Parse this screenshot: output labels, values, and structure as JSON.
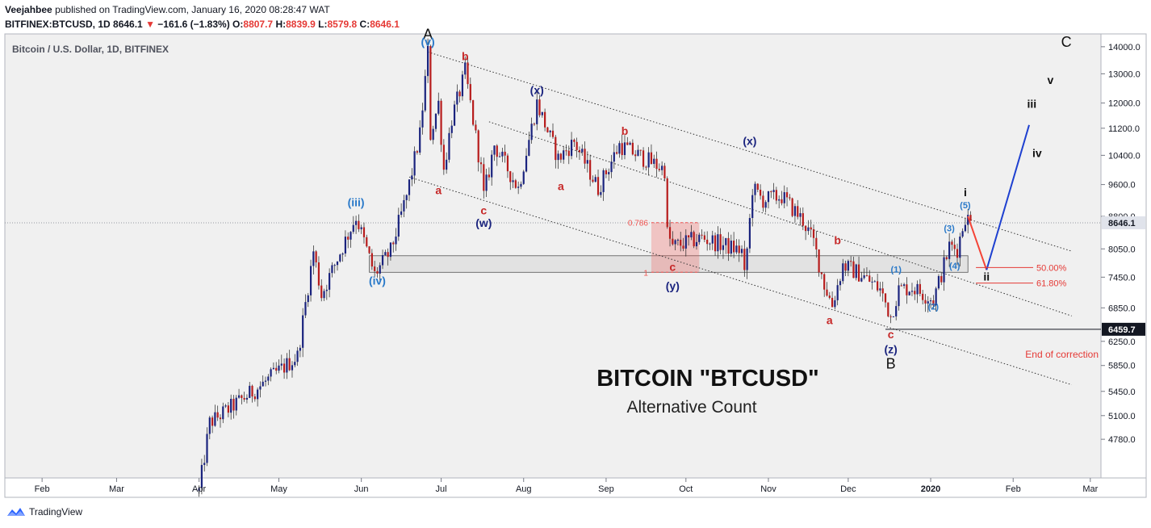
{
  "header": {
    "author": "Veejahbee",
    "published_text": "published on TradingView.com, January 16, 2020 08:28:47 WAT",
    "symbol_line": "BITFINEX:BTCUSD, 1D",
    "last": "8646.1",
    "change": "−161.6 (−1.83%)",
    "o_label": "O:",
    "o_value": "8807.7",
    "h_label": "H:",
    "h_value": "8839.9",
    "l_label": "L:",
    "l_value": "8579.8",
    "c_label": "C:",
    "c_value": "8646.1"
  },
  "footer": {
    "brand": "TradingView",
    "logo_icon": "tradingview-logo-icon"
  },
  "colors": {
    "bull": "#1a237e",
    "bear": "#b71c1c",
    "wave_blue": "#1565c0",
    "wave_red": "#c62828",
    "navy": "#1a237e",
    "background": "#f0f0f0"
  },
  "chart_data": {
    "type": "candlestick",
    "title": "Bitcoin / U.S. Dollar, 1D, BITFINEX",
    "subtitle": "",
    "annotation_title": "BITCOIN \"BTCUSD\"",
    "annotation_subtitle": "Alternative Count",
    "xlabel": "",
    "ylabel": "",
    "x_range": [
      "2019-01-18",
      "2020-03-05"
    ],
    "ylim": [
      4300,
      14500
    ],
    "y_ticks": [
      4780,
      5100,
      5450,
      5850,
      6250,
      6850,
      7450,
      8050,
      8800,
      9600,
      10400,
      11200,
      12000,
      13000,
      14000
    ],
    "y_tick_labels": [
      "4780.0",
      "5100.0",
      "5450.0",
      "5850.0",
      "6250.0",
      "6850.0",
      "7450.0",
      "8050.0",
      "8800.0",
      "9600.0",
      "10400.0",
      "11200.0",
      "12000.0",
      "13000.0",
      "14000.0"
    ],
    "x_ticks": [
      "2019-02-01",
      "2019-03-01",
      "2019-04-01",
      "2019-05-01",
      "2019-06-01",
      "2019-07-01",
      "2019-08-01",
      "2019-09-01",
      "2019-10-01",
      "2019-11-01",
      "2019-12-01",
      "2020-01-01",
      "2020-02-01",
      "2020-03-01"
    ],
    "x_tick_labels": [
      "Feb",
      "Mar",
      "Apr",
      "May",
      "Jun",
      "Jul",
      "Aug",
      "Sep",
      "Oct",
      "Nov",
      "Dec",
      "2020",
      "Feb",
      "Mar"
    ],
    "last_price": 8646.1,
    "last_price_label": "8646.1",
    "end_correction_price": 6459.7,
    "end_correction_label": "6459.7",
    "end_correction_text": "End of correction",
    "key_points": [
      {
        "date": "2019-04-01",
        "price": 4150
      },
      {
        "date": "2019-04-05",
        "price": 5000
      },
      {
        "date": "2019-04-23",
        "price": 5500
      },
      {
        "date": "2019-05-08",
        "price": 6000
      },
      {
        "date": "2019-05-14",
        "price": 8000
      },
      {
        "date": "2019-05-17",
        "price": 7100
      },
      {
        "date": "2019-05-30",
        "price": 8800
      },
      {
        "date": "2019-06-06",
        "price": 7500
      },
      {
        "date": "2019-06-12",
        "price": 8000
      },
      {
        "date": "2019-06-18",
        "price": 9300
      },
      {
        "date": "2019-06-23",
        "price": 11000
      },
      {
        "date": "2019-06-26",
        "price": 13800
      },
      {
        "date": "2019-06-27",
        "price": 11000
      },
      {
        "date": "2019-06-30",
        "price": 12000
      },
      {
        "date": "2019-07-02",
        "price": 10000
      },
      {
        "date": "2019-07-05",
        "price": 11500
      },
      {
        "date": "2019-07-09",
        "price": 12700
      },
      {
        "date": "2019-07-10",
        "price": 13100
      },
      {
        "date": "2019-07-16",
        "price": 10000
      },
      {
        "date": "2019-07-17",
        "price": 9300
      },
      {
        "date": "2019-07-21",
        "price": 10700
      },
      {
        "date": "2019-07-30",
        "price": 9500
      },
      {
        "date": "2019-08-06",
        "price": 12000
      },
      {
        "date": "2019-08-14",
        "price": 10300
      },
      {
        "date": "2019-08-20",
        "price": 10800
      },
      {
        "date": "2019-08-29",
        "price": 9500
      },
      {
        "date": "2019-09-06",
        "price": 10700
      },
      {
        "date": "2019-09-18",
        "price": 10200
      },
      {
        "date": "2019-09-23",
        "price": 10000
      },
      {
        "date": "2019-09-24",
        "price": 8400
      },
      {
        "date": "2019-09-26",
        "price": 8100
      },
      {
        "date": "2019-10-07",
        "price": 8300
      },
      {
        "date": "2019-10-22",
        "price": 8000
      },
      {
        "date": "2019-10-23",
        "price": 7450
      },
      {
        "date": "2019-10-25",
        "price": 8700
      },
      {
        "date": "2019-10-26",
        "price": 9500
      },
      {
        "date": "2019-10-30",
        "price": 9200
      },
      {
        "date": "2019-11-06",
        "price": 9300
      },
      {
        "date": "2019-11-14",
        "price": 8700
      },
      {
        "date": "2019-11-18",
        "price": 8200
      },
      {
        "date": "2019-11-22",
        "price": 7300
      },
      {
        "date": "2019-11-25",
        "price": 6900
      },
      {
        "date": "2019-11-29",
        "price": 7700
      },
      {
        "date": "2019-12-06",
        "price": 7500
      },
      {
        "date": "2019-12-13",
        "price": 7200
      },
      {
        "date": "2019-12-17",
        "price": 6700
      },
      {
        "date": "2019-12-20",
        "price": 7200
      },
      {
        "date": "2019-12-25",
        "price": 7250
      },
      {
        "date": "2020-01-02",
        "price": 7000
      },
      {
        "date": "2020-01-06",
        "price": 7700
      },
      {
        "date": "2020-01-08",
        "price": 8100
      },
      {
        "date": "2020-01-11",
        "price": 8050
      },
      {
        "date": "2020-01-14",
        "price": 8800
      },
      {
        "date": "2020-01-16",
        "price": 8646
      }
    ],
    "channel_lines": [
      {
        "style": "dotted",
        "from": {
          "date": "2019-06-26",
          "price": 13800
        },
        "to": {
          "date": "2020-02-23",
          "price": 8000
        }
      },
      {
        "style": "dotted",
        "from": {
          "date": "2019-07-19",
          "price": 11400
        },
        "to": {
          "date": "2020-02-23",
          "price": 6700
        }
      },
      {
        "style": "dotted",
        "from": {
          "date": "2019-06-19",
          "price": 9800
        },
        "to": {
          "date": "2020-02-23",
          "price": 5550
        }
      }
    ],
    "resistance_zone": {
      "from_date": "2019-06-04",
      "to_date": "2020-01-15",
      "top": 7900,
      "bottom": 7550
    },
    "fib_box": {
      "from_date": "2019-09-18",
      "to_date": "2019-10-06",
      "top": 8650,
      "bottom": 7550,
      "labels": [
        "0.786",
        "1"
      ]
    },
    "projection": {
      "red_leg": [
        {
          "date": "2020-01-15",
          "price": 8800
        },
        {
          "date": "2020-01-22",
          "price": 7600
        }
      ],
      "blue_leg": [
        {
          "date": "2020-01-22",
          "price": 7600
        },
        {
          "date": "2020-02-07",
          "price": 11300
        }
      ]
    },
    "retracement_levels": [
      {
        "label": "50.00%",
        "price": 7650
      },
      {
        "label": "61.80%",
        "price": 7330
      }
    ],
    "wave_labels": [
      {
        "text": "A",
        "date": "2019-06-26",
        "price": 14300,
        "color": "black",
        "size": "large"
      },
      {
        "text": "(v)",
        "date": "2019-06-26",
        "price": 14050,
        "color": "blue"
      },
      {
        "text": "b",
        "date": "2019-07-10",
        "price": 13500,
        "color": "red"
      },
      {
        "text": "a",
        "date": "2019-06-30",
        "price": 9350,
        "color": "red"
      },
      {
        "text": "c",
        "date": "2019-07-17",
        "price": 8850,
        "color": "red"
      },
      {
        "text": "(w)",
        "date": "2019-07-17",
        "price": 8550,
        "color": "navy"
      },
      {
        "text": "(x)",
        "date": "2019-08-06",
        "price": 12300,
        "color": "navy"
      },
      {
        "text": "a",
        "date": "2019-08-15",
        "price": 9450,
        "color": "red"
      },
      {
        "text": "b",
        "date": "2019-09-08",
        "price": 11000,
        "color": "red"
      },
      {
        "text": "c",
        "date": "2019-09-26",
        "price": 7580,
        "color": "red"
      },
      {
        "text": "(y)",
        "date": "2019-09-26",
        "price": 7200,
        "color": "navy"
      },
      {
        "text": "(x)",
        "date": "2019-10-25",
        "price": 10700,
        "color": "navy"
      },
      {
        "text": "b",
        "date": "2019-11-27",
        "price": 8150,
        "color": "red"
      },
      {
        "text": "a",
        "date": "2019-11-24",
        "price": 6550,
        "color": "red"
      },
      {
        "text": "c",
        "date": "2019-12-17",
        "price": 6300,
        "color": "red"
      },
      {
        "text": "(z)",
        "date": "2019-12-17",
        "price": 6050,
        "color": "navy"
      },
      {
        "text": "B",
        "date": "2019-12-17",
        "price": 5800,
        "color": "black",
        "size": "large"
      },
      {
        "text": "(iii)",
        "date": "2019-05-30",
        "price": 9050,
        "color": "blue"
      },
      {
        "text": "(iv)",
        "date": "2019-06-07",
        "price": 7300,
        "color": "blue"
      },
      {
        "text": "(1)",
        "date": "2019-12-19",
        "price": 7550,
        "color": "blue",
        "size": "small"
      },
      {
        "text": "(2)",
        "date": "2020-01-02",
        "price": 6820,
        "color": "blue",
        "size": "small"
      },
      {
        "text": "(3)",
        "date": "2020-01-08",
        "price": 8450,
        "color": "blue",
        "size": "small"
      },
      {
        "text": "(4)",
        "date": "2020-01-10",
        "price": 7620,
        "color": "blue",
        "size": "small"
      },
      {
        "text": "(5)",
        "date": "2020-01-14",
        "price": 9000,
        "color": "blue",
        "size": "small"
      },
      {
        "text": "i",
        "date": "2020-01-14",
        "price": 9300,
        "color": "black"
      },
      {
        "text": "ii",
        "date": "2020-01-22",
        "price": 7380,
        "color": "black"
      },
      {
        "text": "iii",
        "date": "2020-02-08",
        "price": 11850,
        "color": "black"
      },
      {
        "text": "iv",
        "date": "2020-02-10",
        "price": 10350,
        "color": "black"
      },
      {
        "text": "v",
        "date": "2020-02-15",
        "price": 12650,
        "color": "black"
      },
      {
        "text": "C",
        "date": "2020-02-21",
        "price": 14000,
        "color": "black",
        "size": "large"
      }
    ]
  }
}
